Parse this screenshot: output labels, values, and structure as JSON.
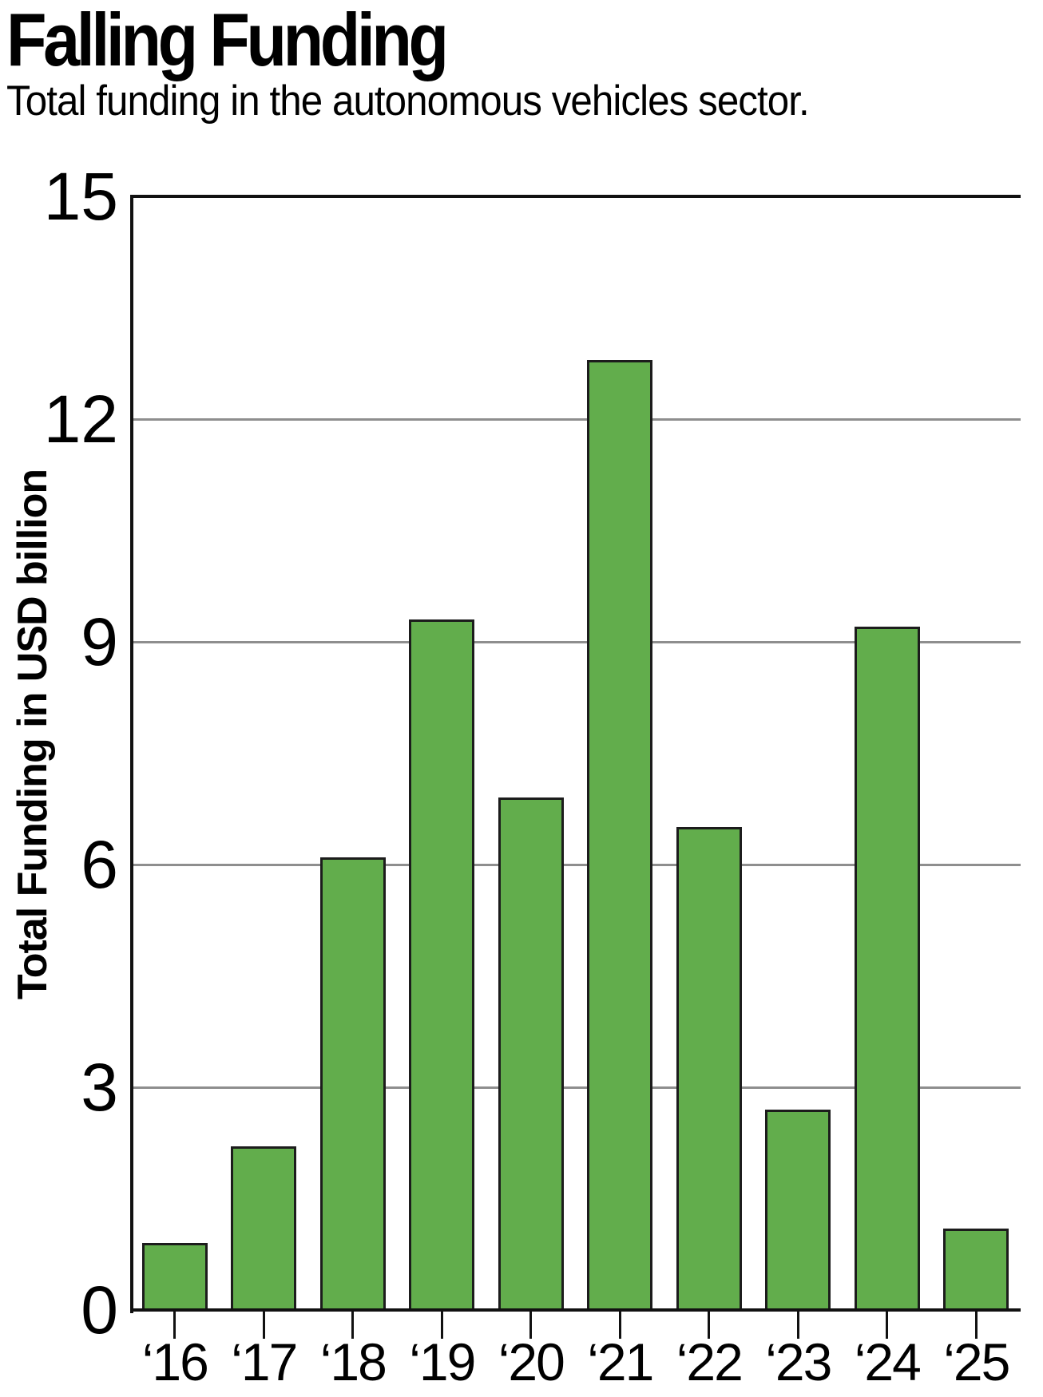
{
  "header": {
    "title": "Falling Funding",
    "subtitle": "Total funding in the autonomous vehicles sector."
  },
  "chart_data": {
    "type": "bar",
    "title": "Falling Funding",
    "subtitle": "Total funding in the autonomous vehicles sector.",
    "categories": [
      "‘16",
      "‘17",
      "‘18",
      "‘19",
      "‘20",
      "‘21",
      "‘22",
      "‘23",
      "‘24",
      "‘25"
    ],
    "values": [
      0.9,
      2.2,
      6.1,
      9.3,
      6.9,
      12.8,
      6.5,
      2.7,
      9.2,
      1.1
    ],
    "xlabel": "",
    "ylabel": "Total Funding in USD billion",
    "ylim": [
      0,
      15
    ],
    "yticks": [
      0,
      3,
      6,
      9,
      12,
      15
    ],
    "grid": "horizontal",
    "legend": "none",
    "colors": {
      "bar_fill": "#62ad4c",
      "bar_border": "#1c1c1c",
      "gridline": "#8e8e8e",
      "axis": "#111111",
      "text": "#000000",
      "background": "#ffffff"
    }
  }
}
